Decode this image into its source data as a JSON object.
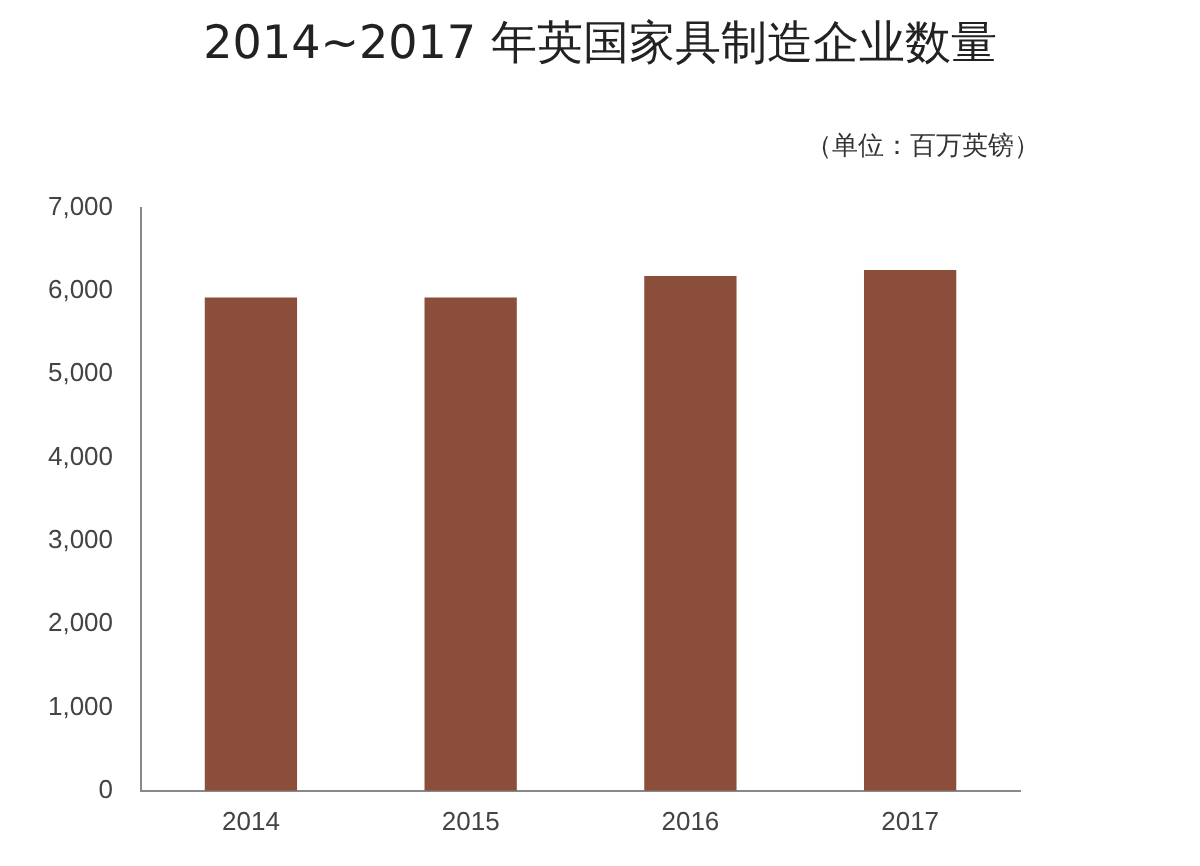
{
  "chart_data": {
    "type": "bar",
    "title": "2014~2017 年英国家具制造企业数量",
    "subtitle": "（单位：百万英镑）",
    "categories": [
      "2014",
      "2015",
      "2016",
      "2017"
    ],
    "values": [
      5920,
      5920,
      6180,
      6250
    ],
    "color": "#8b4e3a",
    "ylim": [
      0,
      7000
    ],
    "yticks": [
      {
        "value": 0,
        "label": "0"
      },
      {
        "value": 1000,
        "label": "1,000"
      },
      {
        "value": 2000,
        "label": "2,000"
      },
      {
        "value": 3000,
        "label": "3,000"
      },
      {
        "value": 4000,
        "label": "4,000"
      },
      {
        "value": 5000,
        "label": "5,000"
      },
      {
        "value": 6000,
        "label": "6,000"
      },
      {
        "value": 7000,
        "label": "7,000"
      }
    ],
    "grid": false,
    "legend": false
  }
}
